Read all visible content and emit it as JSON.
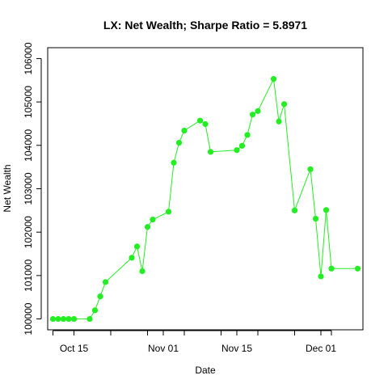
{
  "chart_data": {
    "type": "line",
    "title": "LX: Net Wealth; Sharpe Ratio = 5.8971",
    "xlabel": "Date",
    "ylabel": "Net Wealth",
    "x_ticks": [
      "Oct 15",
      "Nov 01",
      "Nov 15",
      "Dec 01"
    ],
    "y_ticks": [
      "100000",
      "101000",
      "102000",
      "103000",
      "104000",
      "105000",
      "106000"
    ],
    "y_tick_values": [
      100000,
      101000,
      102000,
      103000,
      104000,
      105000,
      106000
    ],
    "xlim": [
      "2018-10-10",
      "2018-12-09"
    ],
    "ylim": [
      99750,
      106250
    ],
    "series": [
      {
        "color": "#22ee22",
        "marker": "circle",
        "points": [
          {
            "date": "2018-10-11",
            "value": 100000
          },
          {
            "date": "2018-10-12",
            "value": 100000
          },
          {
            "date": "2018-10-13",
            "value": 100000
          },
          {
            "date": "2018-10-14",
            "value": 100000
          },
          {
            "date": "2018-10-15",
            "value": 100000
          },
          {
            "date": "2018-10-18",
            "value": 100000
          },
          {
            "date": "2018-10-19",
            "value": 100200
          },
          {
            "date": "2018-10-20",
            "value": 100520
          },
          {
            "date": "2018-10-21",
            "value": 100850
          },
          {
            "date": "2018-10-26",
            "value": 101410
          },
          {
            "date": "2018-10-27",
            "value": 101670
          },
          {
            "date": "2018-10-28",
            "value": 101100
          },
          {
            "date": "2018-10-29",
            "value": 102120
          },
          {
            "date": "2018-10-30",
            "value": 102290
          },
          {
            "date": "2018-11-02",
            "value": 102470
          },
          {
            "date": "2018-11-03",
            "value": 103600
          },
          {
            "date": "2018-11-04",
            "value": 104060
          },
          {
            "date": "2018-11-05",
            "value": 104340
          },
          {
            "date": "2018-11-08",
            "value": 104570
          },
          {
            "date": "2018-11-09",
            "value": 104490
          },
          {
            "date": "2018-11-10",
            "value": 103850
          },
          {
            "date": "2018-11-15",
            "value": 103890
          },
          {
            "date": "2018-11-16",
            "value": 103990
          },
          {
            "date": "2018-11-17",
            "value": 104240
          },
          {
            "date": "2018-11-18",
            "value": 104710
          },
          {
            "date": "2018-11-19",
            "value": 104790
          },
          {
            "date": "2018-11-22",
            "value": 105530
          },
          {
            "date": "2018-11-23",
            "value": 104550
          },
          {
            "date": "2018-11-24",
            "value": 104950
          },
          {
            "date": "2018-11-26",
            "value": 102500
          },
          {
            "date": "2018-11-29",
            "value": 103450
          },
          {
            "date": "2018-11-30",
            "value": 102310
          },
          {
            "date": "2018-12-01",
            "value": 100980
          },
          {
            "date": "2018-12-02",
            "value": 102510
          },
          {
            "date": "2018-12-03",
            "value": 101160
          },
          {
            "date": "2018-12-08",
            "value": 101160
          }
        ]
      }
    ],
    "grid": false,
    "legend": "none"
  }
}
